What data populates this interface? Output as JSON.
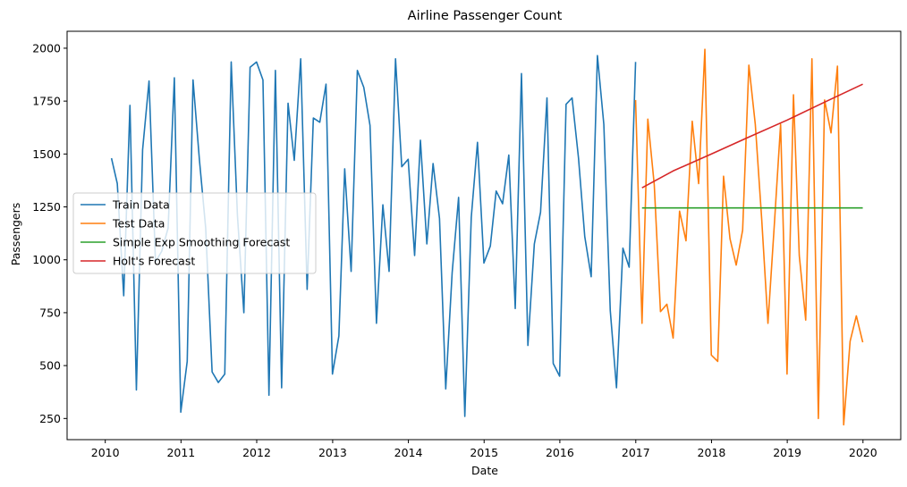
{
  "chart_data": {
    "type": "line",
    "title": "Airline Passenger Count",
    "xlabel": "Date",
    "ylabel": "Passengers",
    "xlim": [
      "2009-07-01",
      "2020-07-01"
    ],
    "ylim": [
      150,
      2080
    ],
    "x_ticks": [
      "2010",
      "2011",
      "2012",
      "2013",
      "2014",
      "2015",
      "2016",
      "2017",
      "2018",
      "2019",
      "2020"
    ],
    "y_ticks": [
      250,
      500,
      750,
      1000,
      1250,
      1500,
      1750,
      2000
    ],
    "grid": false,
    "legend_position": "center-left",
    "series": [
      {
        "name": "Train Data",
        "color": "#1f77b4",
        "x": [
          "2010-01-31",
          "2010-02-28",
          "2010-03-31",
          "2010-04-30",
          "2010-05-31",
          "2010-06-30",
          "2010-07-31",
          "2010-08-31",
          "2010-09-30",
          "2010-10-31",
          "2010-11-30",
          "2010-12-31",
          "2011-01-31",
          "2011-02-28",
          "2011-03-31",
          "2011-04-30",
          "2011-05-31",
          "2011-06-30",
          "2011-07-31",
          "2011-08-31",
          "2011-09-30",
          "2011-10-31",
          "2011-11-30",
          "2011-12-31",
          "2012-01-31",
          "2012-02-29",
          "2012-03-31",
          "2012-04-30",
          "2012-05-31",
          "2012-06-30",
          "2012-07-31",
          "2012-08-31",
          "2012-09-30",
          "2012-10-31",
          "2012-11-30",
          "2012-12-31",
          "2013-01-31",
          "2013-02-28",
          "2013-03-31",
          "2013-04-30",
          "2013-05-31",
          "2013-06-30",
          "2013-07-31",
          "2013-08-31",
          "2013-09-30",
          "2013-10-31",
          "2013-11-30",
          "2013-12-31",
          "2014-01-31",
          "2014-02-28",
          "2014-03-31",
          "2014-04-30",
          "2014-05-31",
          "2014-06-30",
          "2014-07-31",
          "2014-08-31",
          "2014-09-30",
          "2014-10-31",
          "2014-11-30",
          "2014-12-31",
          "2015-01-31",
          "2015-02-28",
          "2015-03-31",
          "2015-04-30",
          "2015-05-31",
          "2015-06-30",
          "2015-07-31",
          "2015-08-31",
          "2015-09-30",
          "2015-10-31",
          "2015-11-30",
          "2015-12-31",
          "2016-01-31",
          "2016-02-29",
          "2016-03-31",
          "2016-04-30",
          "2016-05-31",
          "2016-06-30",
          "2016-07-31",
          "2016-08-31",
          "2016-09-30",
          "2016-10-31",
          "2016-11-30",
          "2016-12-31"
        ],
        "values": [
          1480,
          1360,
          830,
          1730,
          385,
          1520,
          1845,
          990,
          1040,
          1150,
          1860,
          280,
          520,
          1850,
          1470,
          1150,
          470,
          420,
          460,
          1935,
          1210,
          750,
          1910,
          1935,
          1850,
          360,
          1895,
          395,
          1740,
          1470,
          1950,
          860,
          1670,
          1650,
          1830,
          460,
          640,
          1430,
          945,
          1895,
          1815,
          1635,
          700,
          1260,
          945,
          1950,
          1440,
          1475,
          1020,
          1565,
          1075,
          1455,
          1195,
          390,
          940,
          1295,
          260,
          1200,
          1555,
          985,
          1065,
          1325,
          1265,
          1495,
          770,
          1880,
          595,
          1075,
          1225,
          1765,
          510,
          450,
          1735,
          1765,
          1480,
          1110,
          920,
          1965,
          1640,
          760,
          395,
          1055,
          965,
          1935
        ]
      },
      {
        "name": "Test Data",
        "color": "#ff7f0e",
        "x": [
          "2016-12-31",
          "2017-01-31",
          "2017-02-28",
          "2017-03-31",
          "2017-04-30",
          "2017-05-31",
          "2017-06-30",
          "2017-07-31",
          "2017-08-31",
          "2017-09-30",
          "2017-10-31",
          "2017-11-30",
          "2017-12-31",
          "2018-01-31",
          "2018-02-28",
          "2018-03-31",
          "2018-04-30",
          "2018-05-31",
          "2018-06-30",
          "2018-07-31",
          "2018-08-31",
          "2018-09-30",
          "2018-10-31",
          "2018-11-30",
          "2018-12-31",
          "2019-01-31",
          "2019-02-28",
          "2019-03-31",
          "2019-04-30",
          "2019-05-31",
          "2019-06-30",
          "2019-07-31",
          "2019-08-31",
          "2019-09-30",
          "2019-10-31",
          "2019-11-30",
          "2019-12-31"
        ],
        "values": [
          1755,
          700,
          1665,
          1355,
          755,
          790,
          630,
          1230,
          1090,
          1655,
          1360,
          1995,
          550,
          520,
          1395,
          1100,
          975,
          1140,
          1920,
          1640,
          1190,
          700,
          1170,
          1640,
          460,
          1780,
          1020,
          715,
          1950,
          250,
          1755,
          1600,
          1915,
          220,
          615,
          735,
          610
        ]
      },
      {
        "name": "Simple Exp Smoothing Forecast",
        "color": "#2ca02c",
        "x": [
          "2017-01-31",
          "2019-12-31"
        ],
        "values": [
          1245,
          1245
        ]
      },
      {
        "name": "Holt's Forecast",
        "color": "#d62728",
        "x": [
          "2017-01-31",
          "2017-06-30",
          "2017-12-31",
          "2018-06-30",
          "2018-12-31",
          "2019-06-30",
          "2019-12-31"
        ],
        "values": [
          1340,
          1420,
          1500,
          1580,
          1660,
          1745,
          1830
        ]
      }
    ]
  }
}
